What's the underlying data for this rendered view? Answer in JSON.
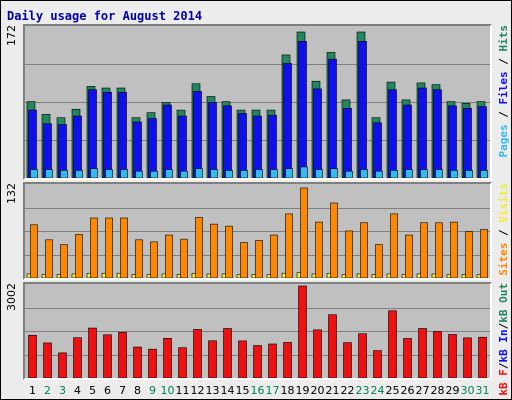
{
  "chart_data": {
    "type": "bar",
    "title": "Daily usage for August 2014",
    "categories": [
      "1",
      "2",
      "3",
      "4",
      "5",
      "6",
      "7",
      "8",
      "9",
      "10",
      "11",
      "12",
      "13",
      "14",
      "15",
      "16",
      "17",
      "18",
      "19",
      "20",
      "21",
      "22",
      "23",
      "24",
      "25",
      "26",
      "27",
      "28",
      "29",
      "30",
      "31"
    ],
    "weekend_days": [
      "2",
      "3",
      "9",
      "10",
      "16",
      "17",
      "23",
      "24",
      "30",
      "31"
    ],
    "panels": [
      {
        "name": "hits",
        "max_label": "172",
        "legend": [
          "Pages",
          "Files",
          "Hits"
        ],
        "ylim": [
          0,
          172
        ],
        "series": [
          {
            "name": "Hits",
            "color": "#22875e",
            "values": [
              90,
              75,
              71,
              81,
              108,
              106,
              106,
              71,
              77,
              89,
              80,
              111,
              96,
              90,
              80,
              80,
              80,
              145,
              172,
              114,
              148,
              92,
              172,
              71,
              113,
              92,
              112,
              110,
              90,
              88,
              90
            ]
          },
          {
            "name": "Files",
            "color": "#1010ee",
            "values": [
              80,
              64,
              63,
              73,
              104,
              101,
              101,
              66,
              70,
              86,
              73,
              102,
              89,
              85,
              76,
              73,
              74,
              135,
              161,
              105,
              140,
              82,
              161,
              65,
              104,
              86,
              106,
              104,
              85,
              82,
              84
            ]
          },
          {
            "name": "Pages",
            "color": "#33bbee",
            "values": [
              10,
              10,
              9,
              9,
              11,
              10,
              10,
              8,
              8,
              10,
              8,
              11,
              10,
              9,
              9,
              10,
              10,
              11,
              13,
              10,
              11,
              8,
              10,
              8,
              9,
              10,
              10,
              10,
              9,
              9,
              9
            ]
          }
        ]
      },
      {
        "name": "visits-sites",
        "max_label": "132",
        "legend": [
          "Sites",
          "Visits"
        ],
        "ylim": [
          0,
          132
        ],
        "series": [
          {
            "name": "Visits",
            "color": "#eeee33",
            "values": [
              6,
              5,
              5,
              6,
              7,
              7,
              7,
              5,
              5,
              6,
              5,
              7,
              6,
              6,
              5,
              5,
              5,
              7,
              8,
              6,
              7,
              5,
              6,
              5,
              6,
              5,
              6,
              6,
              5,
              5,
              5
            ]
          },
          {
            "name": "Sites",
            "color": "#ff8800",
            "values": [
              78,
              56,
              49,
              64,
              88,
              88,
              88,
              56,
              53,
              63,
              57,
              89,
              79,
              76,
              52,
              55,
              63,
              94,
              132,
              82,
              110,
              69,
              81,
              49,
              94,
              63,
              81,
              81,
              82,
              68,
              71
            ]
          }
        ]
      },
      {
        "name": "kb",
        "max_label": "3002",
        "legend": [
          "kB F",
          "/",
          "kB In",
          "/",
          "kB Out"
        ],
        "ylim": [
          0,
          3002
        ],
        "series": [
          {
            "name": "kB F",
            "color": "#ee1111",
            "values": [
              1395,
              1145,
              820,
              1315,
              1630,
              1410,
              1490,
              1010,
              940,
              1295,
              990,
              1585,
              1215,
              1615,
              1210,
              1060,
              1110,
              1160,
              3002,
              1570,
              2065,
              1155,
              1445,
              895,
              2195,
              1290,
              1615,
              1520,
              1420,
              1310,
              1330
            ]
          }
        ]
      }
    ]
  }
}
